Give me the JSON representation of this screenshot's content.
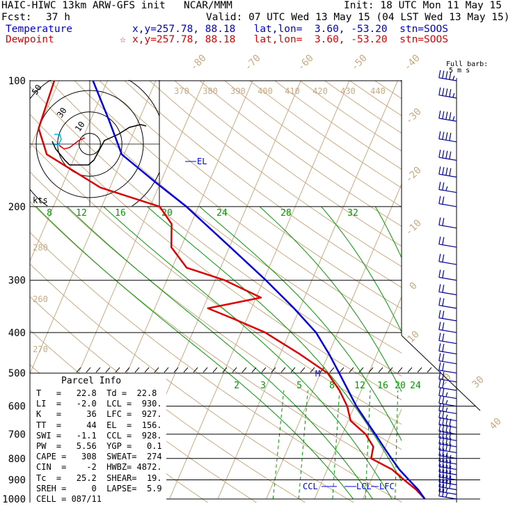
{
  "header": {
    "model": "HAIC-HIWC 13km ARW-GFS init",
    "org": "NCAR/MMM",
    "init": "Init: 18 UTC Mon 11 May 15",
    "fcst_label": "Fcst:",
    "fcst_value": "37 h",
    "valid": "Valid: 07 UTC Wed 13 May 15 (04 LST Wed 13 May 15)",
    "temp_label": "Temperature",
    "temp_loc": "x,y=257.78, 88.18   lat,lon=  3.60, -53.20  stn=SOOS",
    "dew_label": "Dewpoint",
    "dew_loc": "x,y=257.78, 88.18   lat,lon=  3.60, -53.20  stn=SOOS",
    "star": "☆"
  },
  "barb_legend": {
    "line1": "Full barb:",
    "line2": "5 m s"
  },
  "hodograph": {
    "kts_label": "kts",
    "ring_labels": [
      "10",
      "30",
      "50"
    ]
  },
  "labels": {
    "el": "EL",
    "m": "M",
    "ccl": "CCL",
    "lcl": "LCL",
    "lfc": "LFC"
  },
  "mixing_ratio_labels": [
    "2",
    "3",
    "5",
    "8",
    "12",
    "16",
    "20",
    "24"
  ],
  "parcel_info": {
    "title": "Parcel Info",
    "rows": [
      "T   =   22.8  Td =  22.8",
      "LI  =   -2.0  LCL =  930.",
      "K   =     36  LFC =  927.",
      "TT  =     44  EL  =  156.",
      "SWI =   -1.1  CCL =  928.",
      "PW  =   5.56  YGP =   0.1",
      "CAPE =   308  SWEAT=  274",
      "CIN  =    -2  HWBZ= 4872.",
      "Tc  =   25.2  SHEAR=  19.",
      "SREH =     0  LAPSE=  5.9",
      "CELL = 087/11"
    ]
  },
  "colors": {
    "temperature": "#0000dd",
    "dewpoint": "#dd0000",
    "isotherm": "#c8aa82",
    "moist_adiabat": "#009900",
    "barb": "#000099",
    "grid": "#000000",
    "hodo_cyan": "#00bbee"
  },
  "chart_data": {
    "type": "skew-t log-p sounding",
    "pressure_levels": [
      100,
      200,
      300,
      400,
      500,
      600,
      700,
      800,
      900,
      1000
    ],
    "isotherms_c": [
      -80,
      -70,
      -60,
      -50,
      -40,
      -30,
      -20,
      -10,
      0,
      10,
      20,
      30,
      40
    ],
    "theta_k": [
      260,
      270,
      280,
      370,
      380,
      390,
      400,
      410,
      420,
      430,
      440
    ],
    "wet_bulb_labels_c": [
      8,
      12,
      16,
      20,
      24,
      28,
      32
    ],
    "series": [
      {
        "name": "Temperature",
        "points": [
          {
            "p": 1000,
            "t": 22.8
          },
          {
            "p": 950,
            "t": 20.6
          },
          {
            "p": 900,
            "t": 17.8
          },
          {
            "p": 850,
            "t": 14.9
          },
          {
            "p": 800,
            "t": 12.3
          },
          {
            "p": 750,
            "t": 9.6
          },
          {
            "p": 700,
            "t": 6.8
          },
          {
            "p": 650,
            "t": 3.7
          },
          {
            "p": 600,
            "t": 0.4
          },
          {
            "p": 550,
            "t": -2.7
          },
          {
            "p": 500,
            "t": -6.1
          },
          {
            "p": 450,
            "t": -9.9
          },
          {
            "p": 400,
            "t": -14.5
          },
          {
            "p": 350,
            "t": -21.2
          },
          {
            "p": 300,
            "t": -29.5
          },
          {
            "p": 250,
            "t": -39.8
          },
          {
            "p": 200,
            "t": -52.5
          },
          {
            "p": 175,
            "t": -61
          },
          {
            "p": 150,
            "t": -70.5
          },
          {
            "p": 125,
            "t": -76
          },
          {
            "p": 100,
            "t": -83
          }
        ]
      },
      {
        "name": "Dewpoint",
        "points": [
          {
            "p": 1000,
            "t": 22.8
          },
          {
            "p": 950,
            "t": 20.2
          },
          {
            "p": 900,
            "t": 16.8
          },
          {
            "p": 850,
            "t": 13.4
          },
          {
            "p": 800,
            "t": 8.1
          },
          {
            "p": 750,
            "t": 7.5
          },
          {
            "p": 700,
            "t": 4.8
          },
          {
            "p": 650,
            "t": 0.5
          },
          {
            "p": 600,
            "t": -1.5
          },
          {
            "p": 550,
            "t": -4.5
          },
          {
            "p": 500,
            "t": -8.5
          },
          {
            "p": 450,
            "t": -16
          },
          {
            "p": 400,
            "t": -25
          },
          {
            "p": 370,
            "t": -33
          },
          {
            "p": 350,
            "t": -39
          },
          {
            "p": 330,
            "t": -29
          },
          {
            "p": 300,
            "t": -38
          },
          {
            "p": 280,
            "t": -47
          },
          {
            "p": 250,
            "t": -52
          },
          {
            "p": 220,
            "t": -54
          },
          {
            "p": 200,
            "t": -58
          },
          {
            "p": 180,
            "t": -72
          },
          {
            "p": 150,
            "t": -86
          },
          {
            "p": 130,
            "t": -90
          },
          {
            "p": 100,
            "t": -91
          }
        ]
      }
    ],
    "winds": [
      {
        "p": 1000,
        "speed": 15,
        "dir": 60
      },
      {
        "p": 975,
        "speed": 15,
        "dir": 60
      },
      {
        "p": 950,
        "speed": 20,
        "dir": 60
      },
      {
        "p": 925,
        "speed": 20,
        "dir": 65
      },
      {
        "p": 900,
        "speed": 20,
        "dir": 65
      },
      {
        "p": 875,
        "speed": 20,
        "dir": 70
      },
      {
        "p": 850,
        "speed": 20,
        "dir": 70
      },
      {
        "p": 825,
        "speed": 20,
        "dir": 75
      },
      {
        "p": 800,
        "speed": 15,
        "dir": 75
      },
      {
        "p": 775,
        "speed": 20,
        "dir": 75
      },
      {
        "p": 750,
        "speed": 20,
        "dir": 80
      },
      {
        "p": 725,
        "speed": 20,
        "dir": 80
      },
      {
        "p": 700,
        "speed": 20,
        "dir": 80
      },
      {
        "p": 675,
        "speed": 20,
        "dir": 85
      },
      {
        "p": 650,
        "speed": 15,
        "dir": 85
      },
      {
        "p": 625,
        "speed": 15,
        "dir": 85
      },
      {
        "p": 600,
        "speed": 15,
        "dir": 90
      },
      {
        "p": 575,
        "speed": 15,
        "dir": 90
      },
      {
        "p": 550,
        "speed": 10,
        "dir": 90
      },
      {
        "p": 525,
        "speed": 10,
        "dir": 90
      },
      {
        "p": 500,
        "speed": 10,
        "dir": 90
      },
      {
        "p": 475,
        "speed": 10,
        "dir": 100
      },
      {
        "p": 450,
        "speed": 10,
        "dir": 110
      },
      {
        "p": 425,
        "speed": 10,
        "dir": 120
      },
      {
        "p": 400,
        "speed": 10,
        "dir": 130
      },
      {
        "p": 375,
        "speed": 10,
        "dir": 140
      },
      {
        "p": 350,
        "speed": 10,
        "dir": 150
      },
      {
        "p": 325,
        "speed": 10,
        "dir": 160
      },
      {
        "p": 300,
        "speed": 10,
        "dir": 170
      },
      {
        "p": 275,
        "speed": 10,
        "dir": 180
      },
      {
        "p": 250,
        "speed": 10,
        "dir": 200
      },
      {
        "p": 225,
        "speed": 10,
        "dir": 220
      },
      {
        "p": 200,
        "speed": 10,
        "dir": 240
      },
      {
        "p": 185,
        "speed": 15,
        "dir": 250
      },
      {
        "p": 170,
        "speed": 20,
        "dir": 260
      },
      {
        "p": 155,
        "speed": 20,
        "dir": 265
      },
      {
        "p": 140,
        "speed": 20,
        "dir": 270
      },
      {
        "p": 125,
        "speed": 25,
        "dir": 270
      },
      {
        "p": 110,
        "speed": 25,
        "dir": 270
      },
      {
        "p": 100,
        "speed": 25,
        "dir": 270
      }
    ]
  }
}
